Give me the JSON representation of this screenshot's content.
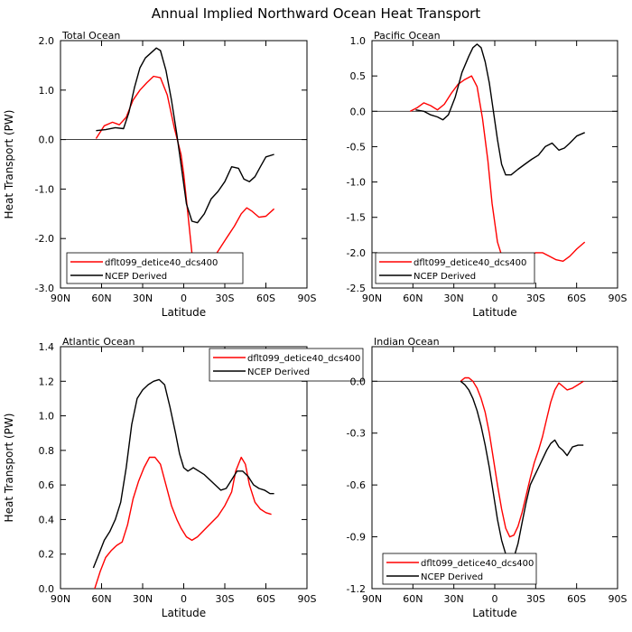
{
  "suptitle": "Annual Implied Northward Ocean Heat Transport",
  "chart_data": [
    {
      "type": "line",
      "title": "Total Ocean",
      "xlabel": "Latitude",
      "ylabel": "Heat Transport (PW)",
      "xlim": [
        90,
        -90
      ],
      "x_ticks": [
        90,
        60,
        30,
        0,
        -30,
        -60,
        -90
      ],
      "x_tick_labels": [
        "90N",
        "60N",
        "30N",
        "0",
        "30S",
        "60S",
        "90S"
      ],
      "ylim": [
        -3.0,
        2.0
      ],
      "y_ticks": [
        -3,
        -2,
        -1,
        0,
        1,
        2
      ],
      "y_tick_labels": [
        "-3.0",
        "-2.0",
        "-1.0",
        "0.0",
        "1.0",
        "2.0"
      ],
      "zero_line": true,
      "legend": "bottom-left",
      "series": [
        {
          "name": "dflt099_detice40_dcs400",
          "color": "#ff0000",
          "x": [
            64,
            58,
            52,
            47,
            42,
            37,
            32,
            27,
            22,
            17,
            12,
            7,
            2,
            0,
            -3,
            -6,
            -9,
            -13,
            -18,
            -24,
            -31,
            -37,
            -42,
            -46,
            -50,
            -55,
            -60,
            -66
          ],
          "y": [
            0.02,
            0.28,
            0.35,
            0.3,
            0.45,
            0.8,
            1.0,
            1.15,
            1.28,
            1.25,
            0.9,
            0.25,
            -0.3,
            -0.7,
            -1.5,
            -2.3,
            -2.7,
            -2.75,
            -2.6,
            -2.3,
            -2.0,
            -1.75,
            -1.5,
            -1.38,
            -1.45,
            -1.57,
            -1.55,
            -1.4
          ]
        },
        {
          "name": "NCEP Derived",
          "color": "#000000",
          "x": [
            64,
            57,
            50,
            44,
            40,
            36,
            32,
            28,
            24,
            20,
            17,
            13,
            9,
            5,
            2,
            -2,
            -6,
            -10,
            -15,
            -20,
            -25,
            -30,
            -35,
            -40,
            -44,
            -48,
            -52,
            -56,
            -60,
            -66
          ],
          "y": [
            0.18,
            0.2,
            0.24,
            0.22,
            0.55,
            1.05,
            1.45,
            1.65,
            1.75,
            1.85,
            1.8,
            1.4,
            0.8,
            0.1,
            -0.5,
            -1.3,
            -1.65,
            -1.68,
            -1.5,
            -1.2,
            -1.05,
            -0.85,
            -0.55,
            -0.58,
            -0.8,
            -0.85,
            -0.75,
            -0.55,
            -0.35,
            -0.3
          ]
        }
      ]
    },
    {
      "type": "line",
      "title": "Pacific Ocean",
      "xlabel": "Latitude",
      "ylabel": "",
      "xlim": [
        90,
        -90
      ],
      "x_ticks": [
        90,
        60,
        30,
        0,
        -30,
        -60,
        -90
      ],
      "x_tick_labels": [
        "90N",
        "60N",
        "30N",
        "0",
        "30S",
        "60S",
        "90S"
      ],
      "ylim": [
        -2.5,
        1.0
      ],
      "y_ticks": [
        -2.5,
        -2,
        -1.5,
        -1,
        -0.5,
        0,
        0.5,
        1
      ],
      "y_tick_labels": [
        "-2.5",
        "-2.0",
        "-1.5",
        "-1.0",
        "-0.5",
        "0.0",
        "0.5",
        "1.0"
      ],
      "zero_line": true,
      "legend": "bottom-left",
      "series": [
        {
          "name": "dflt099_detice40_dcs400",
          "color": "#ff0000",
          "x": [
            62,
            57,
            52,
            47,
            42,
            37,
            32,
            27,
            22,
            17,
            13,
            9,
            5,
            2,
            -2,
            -6,
            -10,
            -15,
            -20,
            -25,
            -30,
            -35,
            -40,
            -45,
            -50,
            -55,
            -60,
            -66
          ],
          "y": [
            0.0,
            0.05,
            0.12,
            0.08,
            0.02,
            0.1,
            0.25,
            0.38,
            0.45,
            0.5,
            0.35,
            -0.1,
            -0.7,
            -1.3,
            -1.85,
            -2.1,
            -2.2,
            -2.18,
            -2.1,
            -2.05,
            -2.0,
            -2.0,
            -2.05,
            -2.1,
            -2.12,
            -2.05,
            -1.95,
            -1.85
          ]
        },
        {
          "name": "NCEP Derived",
          "color": "#000000",
          "x": [
            58,
            52,
            47,
            42,
            38,
            34,
            29,
            24,
            19,
            16,
            13,
            10,
            7,
            4,
            1,
            -2,
            -5,
            -8,
            -12,
            -17,
            -22,
            -27,
            -32,
            -37,
            -42,
            -47,
            -51,
            -55,
            -60,
            -66
          ],
          "y": [
            0.02,
            0.0,
            -0.05,
            -0.08,
            -0.12,
            -0.05,
            0.2,
            0.55,
            0.78,
            0.9,
            0.95,
            0.9,
            0.7,
            0.4,
            0.0,
            -0.4,
            -0.75,
            -0.9,
            -0.9,
            -0.82,
            -0.75,
            -0.68,
            -0.62,
            -0.5,
            -0.45,
            -0.55,
            -0.52,
            -0.45,
            -0.35,
            -0.3
          ]
        }
      ]
    },
    {
      "type": "line",
      "title": "Atlantic Ocean",
      "xlabel": "Latitude",
      "ylabel": "Heat Transport (PW)",
      "xlim": [
        90,
        -90
      ],
      "x_ticks": [
        90,
        60,
        30,
        0,
        -30,
        -60,
        -90
      ],
      "x_tick_labels": [
        "90N",
        "60N",
        "30N",
        "0",
        "30S",
        "60S",
        "90S"
      ],
      "ylim": [
        0.0,
        1.4
      ],
      "y_ticks": [
        0,
        0.2,
        0.4,
        0.6,
        0.8,
        1.0,
        1.2,
        1.4
      ],
      "y_tick_labels": [
        "0.0",
        "0.2",
        "0.4",
        "0.6",
        "0.8",
        "1.0",
        "1.2",
        "1.4"
      ],
      "zero_line": false,
      "legend": "top-right",
      "series": [
        {
          "name": "dflt099_detice40_dcs400",
          "color": "#ff0000",
          "x": [
            65,
            61,
            57,
            53,
            49,
            45,
            41,
            37,
            33,
            29,
            25,
            21,
            17,
            13,
            9,
            5,
            2,
            -2,
            -6,
            -10,
            -15,
            -20,
            -25,
            -30,
            -35,
            -38,
            -42,
            -45,
            -48,
            -52,
            -56,
            -60,
            -64
          ],
          "y": [
            0.0,
            0.1,
            0.18,
            0.22,
            0.25,
            0.27,
            0.37,
            0.52,
            0.62,
            0.7,
            0.76,
            0.76,
            0.72,
            0.6,
            0.48,
            0.4,
            0.35,
            0.3,
            0.28,
            0.3,
            0.34,
            0.38,
            0.42,
            0.48,
            0.56,
            0.68,
            0.76,
            0.72,
            0.6,
            0.5,
            0.46,
            0.44,
            0.43
          ]
        },
        {
          "name": "NCEP Derived",
          "color": "#000000",
          "x": [
            66,
            62,
            58,
            54,
            50,
            46,
            42,
            38,
            34,
            30,
            26,
            22,
            18,
            14,
            10,
            6,
            3,
            0,
            -3,
            -7,
            -11,
            -15,
            -19,
            -23,
            -27,
            -31,
            -35,
            -39,
            -43,
            -47,
            -51,
            -55,
            -59,
            -63,
            -66
          ],
          "y": [
            0.12,
            0.2,
            0.28,
            0.33,
            0.4,
            0.5,
            0.7,
            0.95,
            1.1,
            1.15,
            1.18,
            1.2,
            1.21,
            1.18,
            1.05,
            0.9,
            0.78,
            0.7,
            0.68,
            0.7,
            0.68,
            0.66,
            0.63,
            0.6,
            0.57,
            0.58,
            0.63,
            0.68,
            0.68,
            0.65,
            0.6,
            0.58,
            0.57,
            0.55,
            0.55
          ]
        }
      ]
    },
    {
      "type": "line",
      "title": "Indian Ocean",
      "xlabel": "Latitude",
      "ylabel": "",
      "xlim": [
        90,
        -90
      ],
      "x_ticks": [
        90,
        60,
        30,
        0,
        -30,
        -60,
        -90
      ],
      "x_tick_labels": [
        "90N",
        "60N",
        "30N",
        "0",
        "30S",
        "60S",
        "90S"
      ],
      "ylim": [
        -1.2,
        0.2
      ],
      "y_ticks": [
        -1.2,
        -0.9,
        -0.6,
        -0.3,
        0.0
      ],
      "y_tick_labels": [
        "-1.2",
        "-0.9",
        "-0.6",
        "-0.3",
        "0.0"
      ],
      "zero_line": true,
      "legend": "bottom-left",
      "series": [
        {
          "name": "dflt099_detice40_dcs400",
          "color": "#ff0000",
          "x": [
            25,
            22,
            19,
            16,
            13,
            10,
            7,
            4,
            1,
            -2,
            -5,
            -8,
            -11,
            -14,
            -17,
            -20,
            -23,
            -26,
            -29,
            -32,
            -35,
            -38,
            -41,
            -44,
            -47,
            -50,
            -53,
            -57,
            -61,
            -65
          ],
          "y": [
            0.0,
            0.02,
            0.02,
            0.0,
            -0.04,
            -0.1,
            -0.18,
            -0.3,
            -0.45,
            -0.6,
            -0.74,
            -0.85,
            -0.9,
            -0.89,
            -0.84,
            -0.76,
            -0.66,
            -0.56,
            -0.47,
            -0.4,
            -0.32,
            -0.22,
            -0.12,
            -0.05,
            -0.01,
            -0.03,
            -0.05,
            -0.04,
            -0.02,
            0.0
          ]
        },
        {
          "name": "NCEP Derived",
          "color": "#000000",
          "x": [
            25,
            22,
            19,
            16,
            13,
            10,
            7,
            4,
            1,
            -2,
            -5,
            -8,
            -11,
            -14,
            -17,
            -20,
            -23,
            -26,
            -29,
            -32,
            -35,
            -38,
            -41,
            -44,
            -47,
            -50,
            -53,
            -57,
            -61,
            -65
          ],
          "y": [
            0.0,
            -0.02,
            -0.05,
            -0.1,
            -0.17,
            -0.26,
            -0.37,
            -0.5,
            -0.65,
            -0.8,
            -0.92,
            -1.0,
            -1.04,
            -1.02,
            -0.94,
            -0.82,
            -0.7,
            -0.6,
            -0.55,
            -0.5,
            -0.45,
            -0.4,
            -0.36,
            -0.34,
            -0.38,
            -0.4,
            -0.43,
            -0.38,
            -0.37,
            -0.37
          ]
        }
      ]
    }
  ]
}
